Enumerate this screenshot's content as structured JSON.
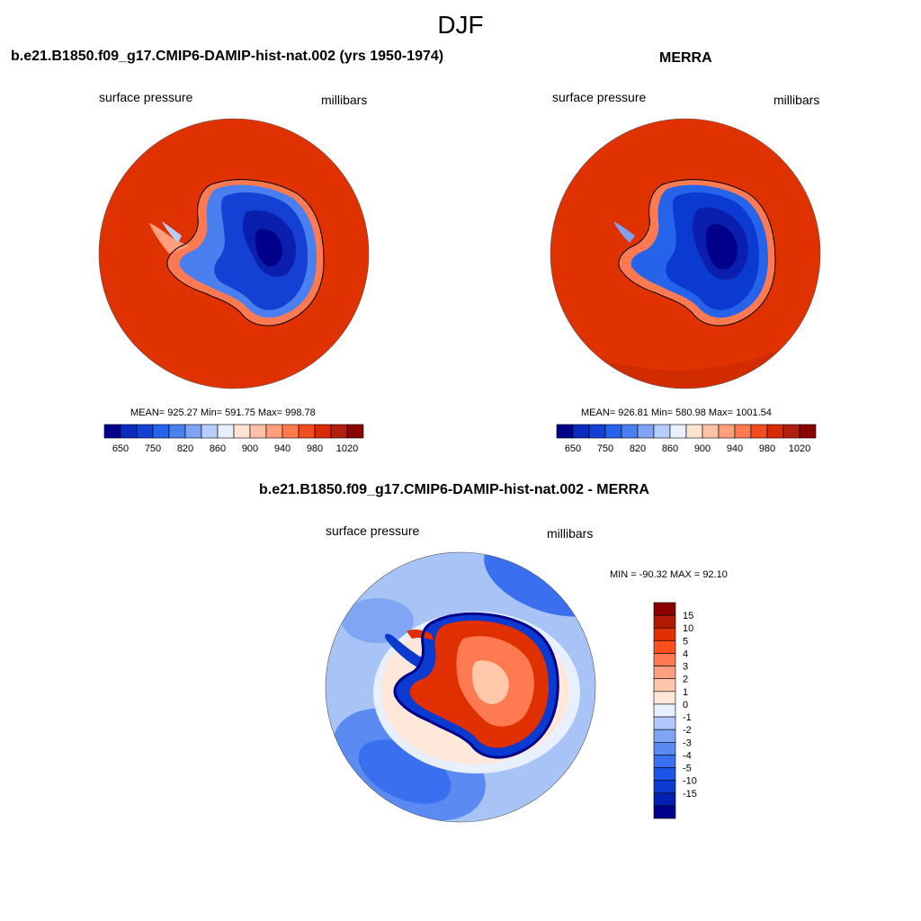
{
  "figure": {
    "title": "DJF"
  },
  "panels": [
    {
      "title": "b.e21.B1850.f09_g17.CMIP6-DAMIP-hist-nat.002 (yrs 1950-1974)",
      "left_label": "surface pressure",
      "right_label": "millibars",
      "stats": "MEAN= 925.27  Min= 591.75  Max= 998.78",
      "colorbar": {
        "colors": [
          "#00008b",
          "#0a2bbd",
          "#1441d4",
          "#2563eb",
          "#4a7ff0",
          "#7fa2f4",
          "#b7cdfa",
          "#e8f0ff",
          "#ffe3d3",
          "#ffc1a5",
          "#ff9f7c",
          "#ff7a50",
          "#f24d1e",
          "#d92a05",
          "#b11f0e",
          "#8b0000"
        ],
        "tick_labels": [
          "650",
          "750",
          "820",
          "860",
          "900",
          "940",
          "980",
          "1020"
        ]
      }
    },
    {
      "title": "MERRA",
      "left_label": "surface pressure",
      "right_label": "millibars",
      "stats": "MEAN= 926.81  Min= 580.98  Max= 1001.54",
      "colorbar": {
        "colors": [
          "#00008b",
          "#0a2bbd",
          "#1441d4",
          "#2563eb",
          "#4a7ff0",
          "#7fa2f4",
          "#b7cdfa",
          "#e8f0ff",
          "#ffe3d3",
          "#ffc1a5",
          "#ff9f7c",
          "#ff7a50",
          "#f24d1e",
          "#d92a05",
          "#b11f0e",
          "#8b0000"
        ],
        "tick_labels": [
          "650",
          "750",
          "820",
          "860",
          "900",
          "940",
          "980",
          "1020"
        ]
      }
    },
    {
      "title": "b.e21.B1850.f09_g17.CMIP6-DAMIP-hist-nat.002 - MERRA",
      "left_label": "surface pressure",
      "right_label": "millibars",
      "stats": "MIN = -90.32 MAX =  92.10",
      "colorbar": {
        "colors": [
          "#00008b",
          "#0020b0",
          "#0a3ad0",
          "#1a55e8",
          "#3a70f0",
          "#5a8af2",
          "#7fa5f4",
          "#b0c8fa",
          "#e8f0ff",
          "#ffe8da",
          "#ffc8aa",
          "#ffa080",
          "#ff7a50",
          "#ff5020",
          "#e03000",
          "#b01a00",
          "#8b0000"
        ],
        "tick_labels": [
          "15",
          "10",
          "5",
          "4",
          "3",
          "2",
          "1",
          "0",
          "-1",
          "-2",
          "-3",
          "-4",
          "-5",
          "-10",
          "-15"
        ]
      }
    }
  ],
  "colors": {
    "ocean_abs": "#e03200",
    "deep_blue": "#0a1fae",
    "diff_bg": "#a8c4f6"
  }
}
